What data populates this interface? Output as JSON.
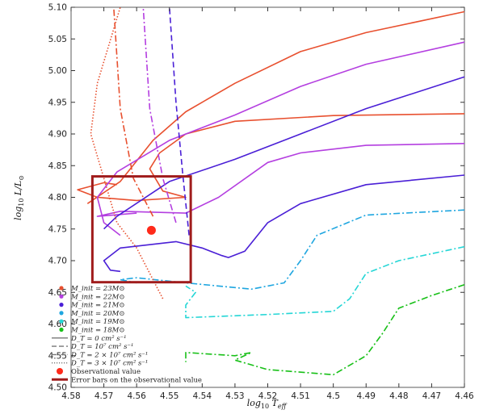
{
  "chart_data": {
    "type": "line",
    "xlabel": "log10 Teff",
    "ylabel": "log10 L/L⊙",
    "xlim": [
      4.58,
      4.46
    ],
    "ylim": [
      4.5,
      5.1
    ],
    "x_reversed": true,
    "grid": false,
    "legend_placement": "bottom-left",
    "x_ticks": [
      "4.58",
      "4.57",
      "4.56",
      "4.55",
      "4.54",
      "4.53",
      "4.52",
      "4.51",
      "4.5",
      "4.49",
      "4.48",
      "4.47",
      "4.46"
    ],
    "y_ticks": [
      "4.50",
      "4.55",
      "4.60",
      "4.65",
      "4.70",
      "4.75",
      "4.80",
      "4.85",
      "4.90",
      "4.95",
      "5.00",
      "5.05",
      "5.10"
    ],
    "mass_legend": [
      {
        "label": "M_init = 23M⊙",
        "color": "#e8502f"
      },
      {
        "label": "M_init = 22M⊙",
        "color": "#b43fe0"
      },
      {
        "label": "M_init = 21M⊙",
        "color": "#4a1fd6"
      },
      {
        "label": "M_init = 20M⊙",
        "color": "#1fa6e0"
      },
      {
        "label": "M_init = 19M⊙",
        "color": "#25d6d6"
      },
      {
        "label": "M_init = 18M⊙",
        "color": "#18c018"
      }
    ],
    "style_legend": [
      {
        "label": "D_T = 0 cm² s⁻¹",
        "dash": "solid"
      },
      {
        "label": "D_T = 10⁷ cm² s⁻¹",
        "dash": "dashed"
      },
      {
        "label": "D_T = 2 × 10⁷ cm² s⁻¹",
        "dash": "dashdot"
      },
      {
        "label": "D_T = 3 × 10⁷ cm² s⁻¹",
        "dash": "dotted"
      }
    ],
    "observation": {
      "label": "Observational value",
      "x": 4.5555,
      "y": 4.748,
      "color": "#ff2a1a"
    },
    "error_box": {
      "label": "Error bars on the observational value",
      "x": [
        4.5735,
        4.5435
      ],
      "y": [
        4.666,
        4.833
      ],
      "color": "#a01c1c"
    },
    "series": [
      {
        "mass": "23",
        "dt": "0",
        "points": [
          [
            4.46,
            4.932
          ],
          [
            4.5,
            4.929
          ],
          [
            4.53,
            4.92
          ],
          [
            4.545,
            4.9
          ],
          [
            4.553,
            4.87
          ],
          [
            4.556,
            4.845
          ],
          [
            4.552,
            4.81
          ],
          [
            4.545,
            4.8
          ],
          [
            4.56,
            4.795
          ],
          [
            4.572,
            4.8
          ],
          [
            4.578,
            4.812
          ],
          [
            4.57,
            4.823
          ],
          [
            4.566,
            4.82
          ]
        ]
      },
      {
        "mass": "23",
        "dt": "0",
        "points": [
          [
            4.46,
            5.093
          ],
          [
            4.49,
            5.06
          ],
          [
            4.51,
            5.03
          ],
          [
            4.53,
            4.98
          ],
          [
            4.545,
            4.935
          ],
          [
            4.555,
            4.89
          ],
          [
            4.565,
            4.825
          ],
          [
            4.575,
            4.79
          ]
        ]
      },
      {
        "mass": "22",
        "dt": "0",
        "points": [
          [
            4.46,
            5.045
          ],
          [
            4.49,
            5.01
          ],
          [
            4.51,
            4.975
          ],
          [
            4.53,
            4.93
          ],
          [
            4.55,
            4.89
          ],
          [
            4.566,
            4.84
          ],
          [
            4.572,
            4.8
          ],
          [
            4.57,
            4.76
          ],
          [
            4.565,
            4.74
          ]
        ]
      },
      {
        "mass": "22",
        "dt": "0",
        "points": [
          [
            4.46,
            4.885
          ],
          [
            4.49,
            4.882
          ],
          [
            4.51,
            4.87
          ],
          [
            4.52,
            4.855
          ],
          [
            4.535,
            4.8
          ],
          [
            4.545,
            4.775
          ],
          [
            4.565,
            4.778
          ],
          [
            4.572,
            4.77
          ],
          [
            4.56,
            4.775
          ]
        ]
      },
      {
        "mass": "21",
        "dt": "0",
        "points": [
          [
            4.46,
            4.835
          ],
          [
            4.49,
            4.82
          ],
          [
            4.51,
            4.79
          ],
          [
            4.52,
            4.76
          ],
          [
            4.527,
            4.715
          ],
          [
            4.532,
            4.705
          ],
          [
            4.534,
            4.708
          ],
          [
            4.54,
            4.72
          ],
          [
            4.548,
            4.73
          ],
          [
            4.565,
            4.72
          ],
          [
            4.57,
            4.7
          ],
          [
            4.568,
            4.685
          ],
          [
            4.565,
            4.683
          ]
        ]
      },
      {
        "mass": "21",
        "dt": "0",
        "points": [
          [
            4.46,
            4.99
          ],
          [
            4.49,
            4.94
          ],
          [
            4.51,
            4.9
          ],
          [
            4.53,
            4.86
          ],
          [
            4.55,
            4.825
          ],
          [
            4.566,
            4.77
          ],
          [
            4.57,
            4.75
          ]
        ]
      },
      {
        "mass": "20",
        "dt": "2e7",
        "points": [
          [
            4.46,
            4.78
          ],
          [
            4.49,
            4.772
          ],
          [
            4.505,
            4.74
          ],
          [
            4.51,
            4.7
          ],
          [
            4.515,
            4.665
          ],
          [
            4.525,
            4.655
          ],
          [
            4.545,
            4.665
          ],
          [
            4.56,
            4.673
          ],
          [
            4.565,
            4.67
          ],
          [
            4.56,
            4.665
          ]
        ]
      },
      {
        "mass": "19",
        "dt": "2e7",
        "points": [
          [
            4.46,
            4.722
          ],
          [
            4.48,
            4.7
          ],
          [
            4.49,
            4.68
          ],
          [
            4.495,
            4.64
          ],
          [
            4.5,
            4.62
          ],
          [
            4.52,
            4.615
          ],
          [
            4.545,
            4.61
          ],
          [
            4.545,
            4.63
          ],
          [
            4.542,
            4.65
          ],
          [
            4.545,
            4.66
          ]
        ]
      },
      {
        "mass": "18",
        "dt": "2e7",
        "points": [
          [
            4.46,
            4.662
          ],
          [
            4.47,
            4.645
          ],
          [
            4.48,
            4.625
          ],
          [
            4.485,
            4.585
          ],
          [
            4.49,
            4.55
          ],
          [
            4.5,
            4.52
          ],
          [
            4.52,
            4.528
          ],
          [
            4.53,
            4.543
          ],
          [
            4.525,
            4.555
          ],
          [
            4.53,
            4.55
          ],
          [
            4.545,
            4.555
          ],
          [
            4.545,
            4.54
          ]
        ]
      },
      {
        "mass": "23",
        "dt": "3e7",
        "points": [
          [
            4.552,
            4.64
          ],
          [
            4.56,
            4.72
          ],
          [
            4.566,
            4.76
          ],
          [
            4.574,
            4.9
          ],
          [
            4.572,
            4.98
          ],
          [
            4.565,
            5.1
          ]
        ]
      },
      {
        "mass": "23",
        "dt": "2e7",
        "points": [
          [
            4.555,
            4.77
          ],
          [
            4.561,
            4.83
          ],
          [
            4.565,
            4.94
          ],
          [
            4.567,
            5.1
          ]
        ]
      },
      {
        "mass": "22",
        "dt": "2e7",
        "points": [
          [
            4.548,
            4.76
          ],
          [
            4.552,
            4.83
          ],
          [
            4.556,
            4.94
          ],
          [
            4.558,
            5.1
          ]
        ]
      },
      {
        "mass": "21",
        "dt": "1e7",
        "points": [
          [
            4.544,
            4.74
          ],
          [
            4.546,
            4.84
          ],
          [
            4.548,
            4.95
          ],
          [
            4.55,
            5.1
          ]
        ]
      }
    ]
  }
}
